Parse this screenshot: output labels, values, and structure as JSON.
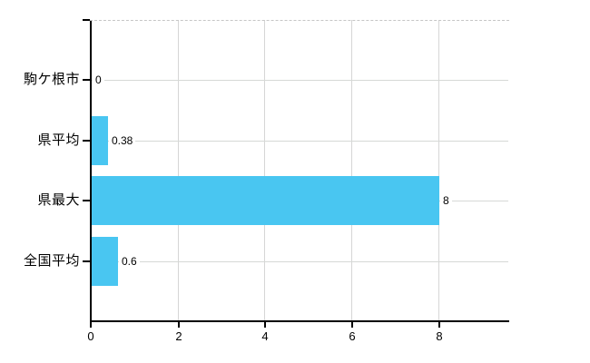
{
  "chart_data": {
    "type": "bar",
    "orientation": "horizontal",
    "title": "",
    "xlabel": "",
    "ylabel": "",
    "categories": [
      "駒ケ根市",
      "県平均",
      "県最大",
      "全国平均"
    ],
    "values": [
      0,
      0.38,
      8,
      0.6
    ],
    "value_labels": [
      "0",
      "0.38",
      "8",
      "0.6"
    ],
    "x_ticks": [
      0,
      2,
      4,
      6,
      8
    ],
    "x_tick_labels": [
      "0",
      "2",
      "4",
      "6",
      "8"
    ],
    "xlim": [
      0,
      9.6
    ],
    "grid": true,
    "legend": false,
    "colors": {
      "bar": "#49c6f1",
      "grid": "#d6d6d6",
      "axis": "#000000",
      "background": "#ffffff",
      "text": "#000000"
    }
  }
}
